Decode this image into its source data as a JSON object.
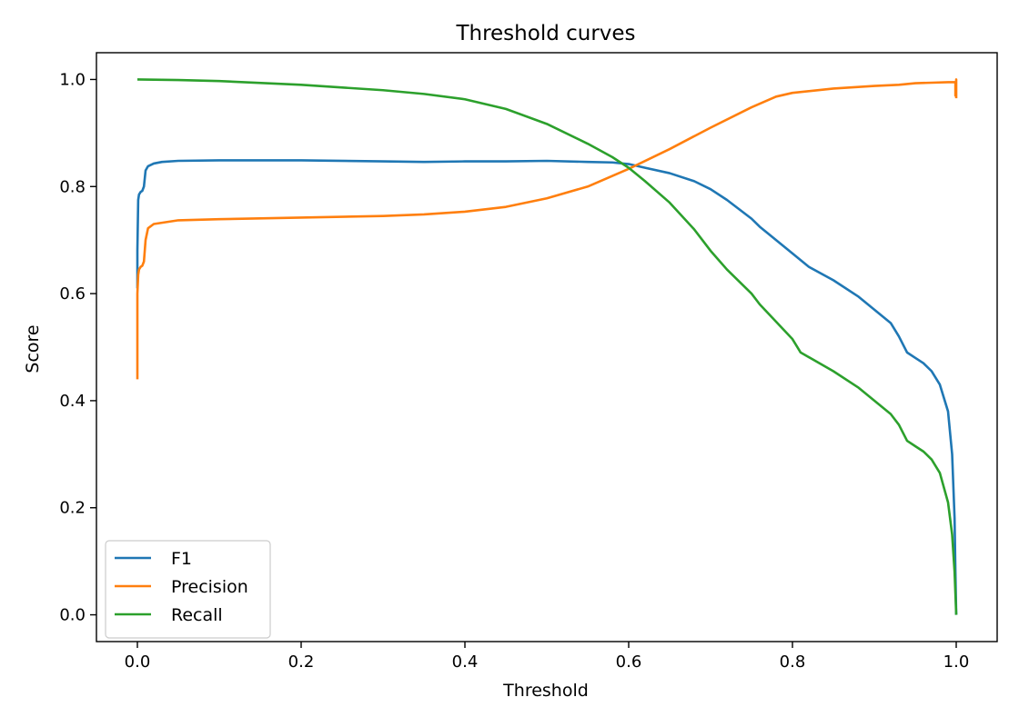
{
  "chart_data": {
    "type": "line",
    "title": "Threshold curves",
    "xlabel": "Threshold",
    "ylabel": "Score",
    "xlim": [
      -0.05,
      1.05
    ],
    "ylim": [
      -0.05,
      1.05
    ],
    "xticks": [
      0.0,
      0.2,
      0.4,
      0.6,
      0.8,
      1.0
    ],
    "xtick_labels": [
      "0.0",
      "0.2",
      "0.4",
      "0.6",
      "0.8",
      "1.0"
    ],
    "yticks": [
      0.0,
      0.2,
      0.4,
      0.6,
      0.8,
      1.0
    ],
    "ytick_labels": [
      "0.0",
      "0.2",
      "0.4",
      "0.6",
      "0.8",
      "1.0"
    ],
    "grid": false,
    "legend_position": "lower-left",
    "series": [
      {
        "name": "F1",
        "color": "#1f77b4",
        "x": [
          0.0,
          0.0,
          0.001,
          0.002,
          0.004,
          0.006,
          0.008,
          0.01,
          0.013,
          0.02,
          0.03,
          0.05,
          0.1,
          0.2,
          0.3,
          0.35,
          0.4,
          0.45,
          0.5,
          0.55,
          0.58,
          0.6,
          0.62,
          0.65,
          0.68,
          0.7,
          0.72,
          0.75,
          0.76,
          0.8,
          0.82,
          0.85,
          0.88,
          0.9,
          0.92,
          0.93,
          0.94,
          0.95,
          0.96,
          0.97,
          0.98,
          0.99,
          0.995,
          0.998,
          0.999,
          1.0
        ],
        "y": [
          0.61,
          0.68,
          0.775,
          0.785,
          0.79,
          0.792,
          0.8,
          0.83,
          0.838,
          0.843,
          0.846,
          0.848,
          0.849,
          0.849,
          0.847,
          0.846,
          0.847,
          0.847,
          0.848,
          0.846,
          0.845,
          0.842,
          0.835,
          0.825,
          0.81,
          0.795,
          0.775,
          0.74,
          0.725,
          0.675,
          0.65,
          0.625,
          0.595,
          0.57,
          0.545,
          0.52,
          0.49,
          0.48,
          0.47,
          0.455,
          0.43,
          0.38,
          0.3,
          0.18,
          0.08,
          0.0
        ]
      },
      {
        "name": "Precision",
        "color": "#ff7f0e",
        "x": [
          0.0,
          0.0,
          0.001,
          0.002,
          0.004,
          0.006,
          0.008,
          0.01,
          0.013,
          0.02,
          0.05,
          0.1,
          0.2,
          0.3,
          0.35,
          0.4,
          0.45,
          0.5,
          0.55,
          0.6,
          0.65,
          0.7,
          0.75,
          0.78,
          0.8,
          0.85,
          0.9,
          0.93,
          0.95,
          0.97,
          0.99,
          0.999,
          0.999,
          1.0,
          1.0
        ],
        "y": [
          0.44,
          0.6,
          0.635,
          0.645,
          0.65,
          0.652,
          0.66,
          0.7,
          0.722,
          0.73,
          0.737,
          0.739,
          0.742,
          0.745,
          0.748,
          0.753,
          0.762,
          0.778,
          0.8,
          0.833,
          0.87,
          0.91,
          0.948,
          0.968,
          0.975,
          0.983,
          0.988,
          0.99,
          0.993,
          0.994,
          0.995,
          0.995,
          0.97,
          1.0,
          0.965
        ]
      },
      {
        "name": "Recall",
        "color": "#2ca02c",
        "x": [
          0.0,
          0.05,
          0.1,
          0.2,
          0.3,
          0.35,
          0.4,
          0.45,
          0.5,
          0.55,
          0.58,
          0.6,
          0.62,
          0.65,
          0.68,
          0.7,
          0.72,
          0.75,
          0.76,
          0.8,
          0.81,
          0.85,
          0.88,
          0.9,
          0.92,
          0.93,
          0.94,
          0.95,
          0.96,
          0.97,
          0.98,
          0.99,
          0.995,
          0.998,
          0.999,
          1.0
        ],
        "y": [
          1.0,
          0.999,
          0.997,
          0.99,
          0.98,
          0.973,
          0.963,
          0.945,
          0.917,
          0.88,
          0.855,
          0.835,
          0.81,
          0.77,
          0.72,
          0.68,
          0.645,
          0.6,
          0.58,
          0.515,
          0.49,
          0.455,
          0.425,
          0.4,
          0.375,
          0.355,
          0.325,
          0.315,
          0.305,
          0.29,
          0.265,
          0.21,
          0.15,
          0.08,
          0.04,
          0.0
        ]
      }
    ]
  }
}
